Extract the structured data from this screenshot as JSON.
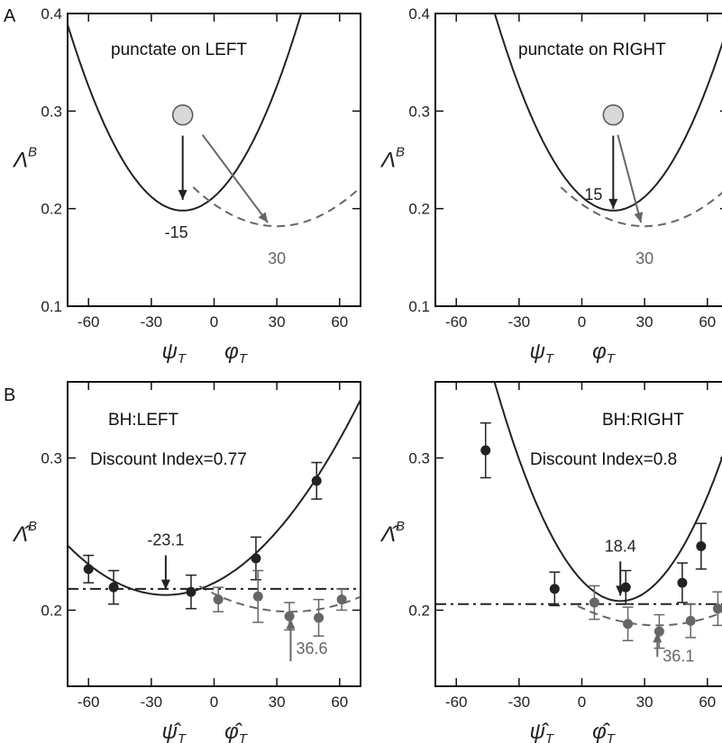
{
  "panel_labels": {
    "A": "A",
    "B": "B"
  },
  "colors": {
    "dark": "#222222",
    "gray": "#666666",
    "marker_fill": "#d9d9d9"
  },
  "chart_data": [
    {
      "id": "A-left",
      "type": "line",
      "title": "punctate on LEFT",
      "ylabel": "Λ^B",
      "xlabels": [
        "ψ_T",
        "φ_T"
      ],
      "xlim": [
        -70,
        70
      ],
      "ylim": [
        0.1,
        0.4
      ],
      "xticks": [
        "-60",
        "-30",
        "0",
        "30",
        "60"
      ],
      "yticks": [
        "0.1",
        "0.2",
        "0.3",
        "0.4"
      ],
      "series": [
        {
          "style": "solid",
          "color": "dark",
          "vertex": [
            -15,
            0.198
          ],
          "a": 6.3e-05
        },
        {
          "style": "dashed",
          "color": "gray",
          "vertex": [
            30,
            0.182
          ],
          "a": 2.5e-05,
          "xrange": [
            -10,
            70
          ]
        }
      ],
      "marker": {
        "x": -15,
        "y": 0.296
      },
      "annotations": [
        {
          "text": "-15",
          "x": -15,
          "y": 0.198,
          "color": "dark"
        },
        {
          "text": "30",
          "x": 30,
          "y": 0.182,
          "color": "gray"
        }
      ]
    },
    {
      "id": "A-right",
      "type": "line",
      "title": "punctate on RIGHT",
      "ylabel": "Λ^B",
      "xlabels": [
        "ψ_T",
        "φ_T"
      ],
      "xlim": [
        -70,
        70
      ],
      "ylim": [
        0.1,
        0.4
      ],
      "xticks": [
        "-60",
        "-30",
        "0",
        "30",
        "60"
      ],
      "yticks": [
        "0.1",
        "0.2",
        "0.3",
        "0.4"
      ],
      "series": [
        {
          "style": "solid",
          "color": "dark",
          "vertex": [
            15,
            0.198
          ],
          "a": 6.3e-05
        },
        {
          "style": "dashed",
          "color": "gray",
          "vertex": [
            30,
            0.182
          ],
          "a": 2.5e-05,
          "xrange": [
            -10,
            70
          ]
        }
      ],
      "marker": {
        "x": 15,
        "y": 0.296
      },
      "annotations": [
        {
          "text": "15",
          "x": 15,
          "y": 0.198,
          "color": "dark"
        },
        {
          "text": "30",
          "x": 30,
          "y": 0.182,
          "color": "gray"
        }
      ]
    },
    {
      "id": "B-left",
      "type": "scatter",
      "title": "BH:LEFT",
      "subtitle": "Discount Index=0.77",
      "ylabel": "Λ̂^B",
      "xlabels": [
        "ψ̂_T",
        "φ̂_T"
      ],
      "xlim": [
        -70,
        70
      ],
      "ylim": [
        0.15,
        0.35
      ],
      "xticks": [
        "-60",
        "-30",
        "0",
        "30",
        "60"
      ],
      "yticks": [
        "0.2",
        "0.3"
      ],
      "series": [
        {
          "style": "solid",
          "color": "dark",
          "vertex": [
            -23.1,
            0.21
          ],
          "a": 1.48e-05
        },
        {
          "style": "dashed",
          "color": "gray",
          "vertex": [
            36.6,
            0.199
          ],
          "a": 8.8e-06,
          "xrange": [
            -7,
            70
          ]
        },
        {
          "style": "dashdot",
          "color": "dark",
          "y": 0.214
        }
      ],
      "points": [
        {
          "x": -60,
          "y": 0.227,
          "err": 0.009,
          "color": "dark"
        },
        {
          "x": -48,
          "y": 0.215,
          "err": 0.011,
          "color": "dark"
        },
        {
          "x": -11,
          "y": 0.212,
          "err": 0.011,
          "color": "dark"
        },
        {
          "x": 20,
          "y": 0.234,
          "err": 0.014,
          "color": "dark"
        },
        {
          "x": 49,
          "y": 0.285,
          "err": 0.012,
          "color": "dark"
        },
        {
          "x": 2,
          "y": 0.207,
          "err": 0.008,
          "color": "gray"
        },
        {
          "x": 21,
          "y": 0.209,
          "err": 0.017,
          "color": "gray"
        },
        {
          "x": 36,
          "y": 0.196,
          "err": 0.009,
          "color": "gray"
        },
        {
          "x": 50,
          "y": 0.195,
          "err": 0.012,
          "color": "gray"
        },
        {
          "x": 61,
          "y": 0.207,
          "err": 0.007,
          "color": "gray"
        }
      ],
      "annotations": [
        {
          "text": "-23.1",
          "x": -23.1,
          "color": "dark"
        },
        {
          "text": "36.6",
          "x": 36.6,
          "color": "gray"
        }
      ]
    },
    {
      "id": "B-right",
      "type": "scatter",
      "title": "BH:RIGHT",
      "subtitle": "Discount Index=0.8",
      "ylabel": "Λ̂^B",
      "xlabels": [
        "ψ̂_T",
        "φ̂_T"
      ],
      "xlim": [
        -70,
        70
      ],
      "ylim": [
        0.15,
        0.35
      ],
      "xticks": [
        "-60",
        "-30",
        "0",
        "30",
        "60"
      ],
      "yticks": [
        "0.2",
        "0.3"
      ],
      "series": [
        {
          "style": "solid",
          "color": "dark",
          "vertex": [
            18.4,
            0.206
          ],
          "a": 3.98e-05
        },
        {
          "style": "dashed",
          "color": "gray",
          "vertex": [
            36.1,
            0.19
          ],
          "a": 8.8e-06,
          "xrange": [
            -2,
            70
          ]
        },
        {
          "style": "dashdot",
          "color": "dark",
          "y": 0.204
        }
      ],
      "points": [
        {
          "x": -46,
          "y": 0.305,
          "err": 0.018,
          "color": "dark"
        },
        {
          "x": -13,
          "y": 0.214,
          "err": 0.011,
          "color": "dark"
        },
        {
          "x": 21,
          "y": 0.215,
          "err": 0.011,
          "color": "dark"
        },
        {
          "x": 48,
          "y": 0.218,
          "err": 0.013,
          "color": "dark"
        },
        {
          "x": 57,
          "y": 0.242,
          "err": 0.015,
          "color": "dark"
        },
        {
          "x": 6,
          "y": 0.205,
          "err": 0.011,
          "color": "gray"
        },
        {
          "x": 22,
          "y": 0.191,
          "err": 0.011,
          "color": "gray"
        },
        {
          "x": 37,
          "y": 0.186,
          "err": 0.011,
          "color": "gray"
        },
        {
          "x": 52,
          "y": 0.193,
          "err": 0.011,
          "color": "gray"
        },
        {
          "x": 65,
          "y": 0.201,
          "err": 0.011,
          "color": "gray"
        }
      ],
      "annotations": [
        {
          "text": "18.4",
          "x": 18.4,
          "color": "dark"
        },
        {
          "text": "36.1",
          "x": 36.1,
          "color": "gray"
        }
      ]
    }
  ]
}
